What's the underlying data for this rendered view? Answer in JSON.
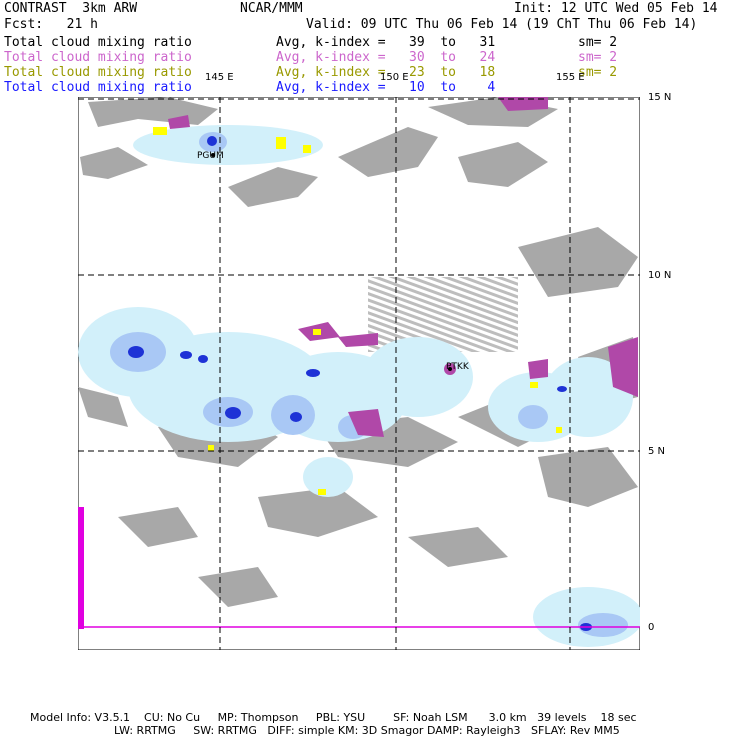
{
  "header": {
    "model": "CONTRAST  3km ARW",
    "org": "NCAR/MMM",
    "init": "Init: 12 UTC Wed 05 Feb 14",
    "forecast": "Fcst:   21 h",
    "valid": "Valid: 09 UTC Thu 06 Feb 14 (19 ChT Thu 06 Feb 14)"
  },
  "legend": [
    {
      "field": "Total cloud mixing ratio",
      "avg": "Avg, k-index =   39  to   31",
      "sm": "sm= 2",
      "color": "#000000"
    },
    {
      "field": "Total cloud mixing ratio",
      "avg": "Avg, k-index =   30  to   24",
      "sm": "sm= 2",
      "color": "#cc66cc"
    },
    {
      "field": "Total cloud mixing ratio",
      "avg": "Avg, k-index =   23  to   18",
      "sm": "sm= 2",
      "color": "#999900"
    },
    {
      "field": "Total cloud mixing ratio",
      "avg": "Avg, k-index =   10  to    4",
      "sm": "",
      "color": "#1a1aff"
    }
  ],
  "map": {
    "lon_labels": [
      "145 E",
      "150 E",
      "155 E"
    ],
    "lat_labels": [
      "15 N",
      "10 N",
      "5 N",
      "0"
    ],
    "stations": [
      "PGUM",
      "PTKK"
    ]
  },
  "footer": {
    "line1": "Model Info: V3.5.1    CU: No Cu     MP: Thompson     PBL: YSU        SF: Noah LSM      3.0 km   39 levels    18 sec",
    "line2": "LW: RRTMG     SW: RRTMG   DIFF: simple KM: 3D Smagor DAMP: Rayleigh3   SFLAY: Rev MM5"
  }
}
